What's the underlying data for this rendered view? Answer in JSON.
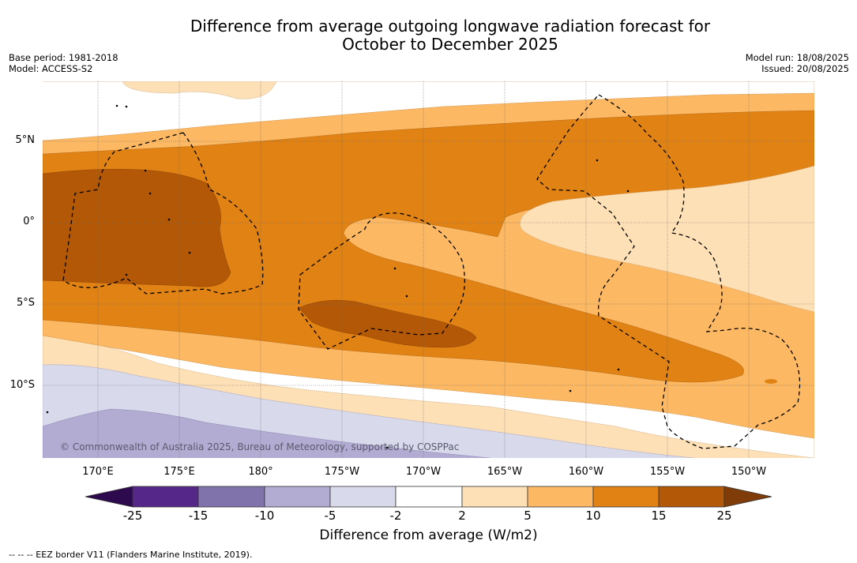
{
  "header": {
    "title_line1": "Difference from average outgoing longwave radiation forecast for",
    "title_line2": "October to December 2025",
    "base_period": "Base period: 1981-2018",
    "model": "Model: ACCESS-S2",
    "model_run": "Model run: 18/08/2025",
    "issued": "Issued: 20/08/2025"
  },
  "map": {
    "lat_labels": [
      "5°N",
      "0°",
      "5°S",
      "10°S"
    ],
    "lon_labels": [
      "170°E",
      "175°E",
      "180°",
      "175°W",
      "170°W",
      "165°W",
      "160°W",
      "155°W",
      "150°W"
    ],
    "copyright": "© Commonwealth of Australia 2025, Bureau of Meteorology, supported by COSPPac"
  },
  "colorbar": {
    "ticks": [
      "-25",
      "-15",
      "-10",
      "-5",
      "-2",
      "2",
      "5",
      "10",
      "15",
      "25"
    ],
    "colors": {
      "lt_neg25": "#2d0a4e",
      "neg25_to_neg15": "#542788",
      "neg15_to_neg10": "#8073ac",
      "neg10_to_neg5": "#b2abd2",
      "neg5_to_neg2": "#d8daeb",
      "neg2_to_2": "#ffffff",
      "2_to_5": "#fee0b6",
      "5_to_10": "#fdb863",
      "10_to_15": "#e08214",
      "15_to_25": "#b35806",
      "gt_25": "#7f3b08"
    },
    "label": "Difference from average (W/m2)"
  },
  "footnote": "--  --  -- EEZ border V11 (Flanders Marine Institute, 2019)."
}
